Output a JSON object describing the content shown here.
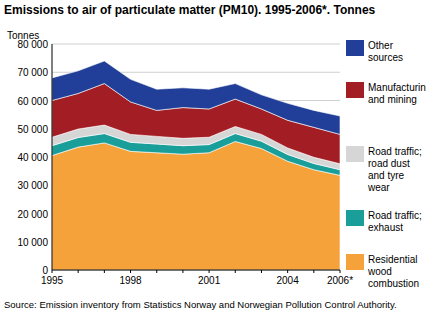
{
  "chart_data": {
    "type": "area",
    "stacked": true,
    "title": "Emissions to air of particulate matter (PM10). 1995-2006*. Tonnes",
    "y_label": "Tonnes",
    "source": "Source: Emission inventory from Statistics Norway and Norwegian Pollution Control Authority.",
    "categories": [
      "1995",
      null,
      null,
      "1998",
      null,
      null,
      "2001",
      null,
      null,
      "2004",
      null,
      "2006*"
    ],
    "series": [
      {
        "name": "Residential wood combustion",
        "color": "#f5a23a",
        "values": [
          40500,
          43500,
          45000,
          42000,
          41500,
          41000,
          41500,
          45500,
          43000,
          38500,
          35500,
          33500
        ]
      },
      {
        "name": "Road traffic; exhaust",
        "color": "#1a9e9a",
        "values": [
          3500,
          3400,
          3300,
          3200,
          3100,
          3000,
          2900,
          2800,
          2600,
          2400,
          2200,
          2000
        ]
      },
      {
        "name": "Road traffic; road dust and tyre wear",
        "color": "#d6d6d6",
        "values": [
          3000,
          3000,
          3000,
          2800,
          2700,
          2600,
          2600,
          2500,
          2400,
          2300,
          2200,
          2100
        ]
      },
      {
        "name": "Manufacturing and mining",
        "color": "#a31e24",
        "values": [
          13000,
          12600,
          14700,
          11500,
          9200,
          10900,
          10000,
          9700,
          9000,
          9800,
          10600,
          10400
        ]
      },
      {
        "name": "Other sources",
        "color": "#213f98",
        "values": [
          8000,
          8000,
          8000,
          8000,
          7500,
          7000,
          7000,
          5500,
          5000,
          6000,
          6000,
          6500
        ]
      }
    ],
    "ylim": [
      0,
      80000
    ],
    "yticks": [
      0,
      {
        "value": 10000,
        "label": "10 000"
      },
      {
        "value": 20000,
        "label": "20 000"
      },
      {
        "value": 30000,
        "label": "30 000"
      },
      {
        "value": 40000,
        "label": "40 000"
      },
      {
        "value": 50000,
        "label": "50 000"
      },
      {
        "value": 60000,
        "label": "60 000"
      },
      {
        "value": 70000,
        "label": "70 000"
      },
      {
        "value": 80000,
        "label": "80 000"
      }
    ],
    "grid": true,
    "legend": "right"
  }
}
